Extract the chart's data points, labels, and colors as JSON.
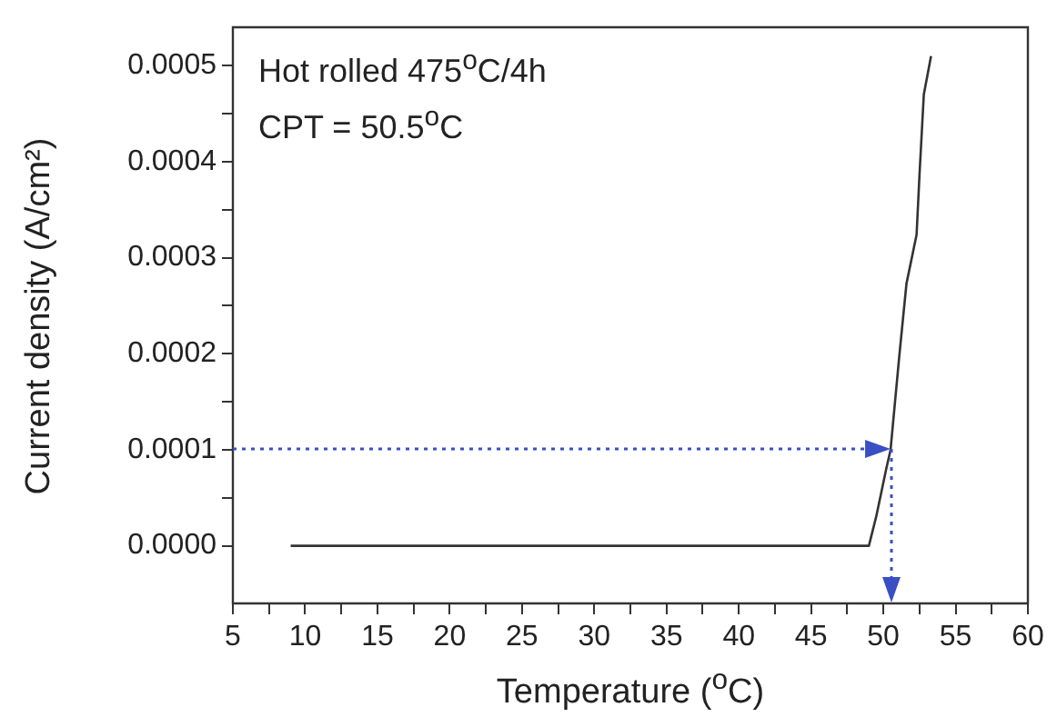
{
  "chart_data": {
    "type": "line",
    "xlabel": "Temperature ($^{o}$C)",
    "ylabel": "Current density (A/cm²)",
    "annotations": [
      "Hot rolled 475$^{o}$C/4h",
      "CPT = 50.5$^{o}$C"
    ],
    "ref_lines": [
      {
        "axis": "y",
        "value": 0.0001,
        "color": "#3a4fc4",
        "line_style": "dotted"
      },
      {
        "axis": "x",
        "value": 50.5,
        "color": "#3a4fc4",
        "line_style": "dotted"
      }
    ],
    "xlim": [
      5,
      60
    ],
    "xticks": [
      5,
      {
        "value": 7.5,
        "label": null
      },
      10,
      {
        "value": 12.5,
        "label": null
      },
      15,
      {
        "value": 17.5,
        "label": null
      },
      20,
      {
        "value": 22.5,
        "label": null
      },
      25,
      {
        "value": 27.5,
        "label": null
      },
      30,
      {
        "value": 32.5,
        "label": null
      },
      35,
      {
        "value": 37.5,
        "label": null
      },
      40,
      {
        "value": 42.5,
        "label": null
      },
      45,
      {
        "value": 47.5,
        "label": null
      },
      50,
      {
        "value": 52.5,
        "label": null
      },
      55,
      {
        "value": 57.5,
        "label": null
      },
      60
    ],
    "ylim": [
      -6e-05,
      0.00054
    ],
    "yticks": [
      {
        "value": 0,
        "label": "0.0000"
      },
      {
        "value": 5e-05,
        "label": null
      },
      {
        "value": 0.0001,
        "label": "0.0001"
      },
      {
        "value": 0.00015,
        "label": null
      },
      {
        "value": 0.0002,
        "label": "0.0002"
      },
      {
        "value": 0.00025,
        "label": null
      },
      {
        "value": 0.0003,
        "label": "0.0003"
      },
      {
        "value": 0.00035,
        "label": null
      },
      {
        "value": 0.0004,
        "label": "0.0004"
      },
      {
        "value": 0.00045,
        "label": null
      },
      {
        "value": 0.0005,
        "label": "0.0005"
      }
    ],
    "grid": false,
    "legend": false,
    "series": [
      {
        "color": "#333333",
        "line_style": "solid",
        "x": [
          9,
          15,
          25,
          35,
          45,
          49,
          49.5,
          50.2,
          50.5,
          51.1,
          51.6,
          52.3,
          52.5,
          52.8,
          53.3
        ],
        "values": [
          0,
          0,
          0,
          0,
          0,
          0,
          3e-05,
          8e-05,
          0.0001,
          0.000197,
          0.000273,
          0.000324,
          0.000386,
          0.00047,
          0.00051
        ]
      }
    ]
  }
}
